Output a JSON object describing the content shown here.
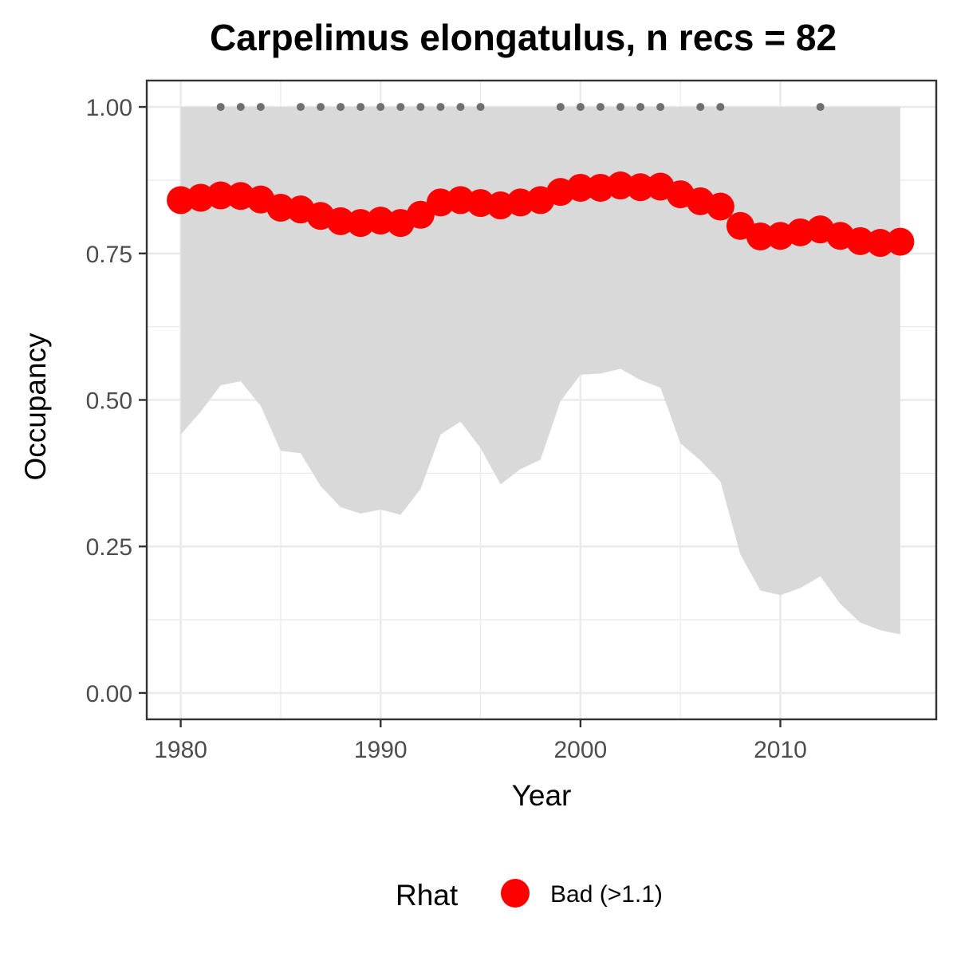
{
  "chart_data": {
    "type": "line",
    "title": "Carpelimus elongatulus, n recs = 82",
    "xlabel": "Year",
    "ylabel": "Occupancy",
    "xlim": [
      1978.3,
      2017.8
    ],
    "ylim": [
      -0.045,
      1.045
    ],
    "x_ticks": [
      1980,
      1990,
      2000,
      2010
    ],
    "y_ticks": [
      0,
      0.25,
      0.5,
      0.75,
      1
    ],
    "x_tick_labels": [
      "1980",
      "1990",
      "2000",
      "2010"
    ],
    "y_tick_labels": [
      "0.00",
      "0.25",
      "0.50",
      "0.75",
      "1.00"
    ],
    "grid": true,
    "legend": {
      "title": "Rhat",
      "position": "bottom",
      "entries": [
        {
          "label": "Bad (>1.1)",
          "color": "#ff0000"
        }
      ]
    },
    "colors": {
      "points": "#ff0000",
      "ribbon": "#d9d9d9",
      "record_dots": "#707070",
      "grid": "#ebebeb",
      "border": "#333333"
    },
    "years": [
      1980,
      1981,
      1982,
      1983,
      1984,
      1985,
      1986,
      1987,
      1988,
      1989,
      1990,
      1991,
      1992,
      1993,
      1994,
      1995,
      1996,
      1997,
      1998,
      1999,
      2000,
      2001,
      2002,
      2003,
      2004,
      2005,
      2006,
      2007,
      2008,
      2009,
      2010,
      2011,
      2012,
      2013,
      2014,
      2015,
      2016
    ],
    "series": [
      {
        "values": [
          0.841,
          0.845,
          0.849,
          0.848,
          0.842,
          0.828,
          0.825,
          0.814,
          0.805,
          0.802,
          0.806,
          0.802,
          0.816,
          0.837,
          0.841,
          0.836,
          0.832,
          0.837,
          0.841,
          0.855,
          0.862,
          0.862,
          0.866,
          0.863,
          0.864,
          0.851,
          0.839,
          0.83,
          0.797,
          0.779,
          0.78,
          0.786,
          0.791,
          0.78,
          0.771,
          0.768,
          0.77
        ]
      }
    ],
    "interval": {
      "lower": [
        0.441,
        0.48,
        0.525,
        0.532,
        0.49,
        0.413,
        0.409,
        0.353,
        0.317,
        0.306,
        0.313,
        0.304,
        0.348,
        0.441,
        0.463,
        0.418,
        0.356,
        0.382,
        0.398,
        0.498,
        0.543,
        0.545,
        0.553,
        0.534,
        0.521,
        0.426,
        0.397,
        0.361,
        0.236,
        0.175,
        0.167,
        0.179,
        0.199,
        0.152,
        0.12,
        0.107,
        0.1
      ],
      "upper": [
        1,
        1,
        1,
        1,
        1,
        1,
        1,
        1,
        1,
        1,
        1,
        1,
        1,
        1,
        1,
        1,
        1,
        1,
        1,
        1,
        1,
        1,
        1,
        1,
        1,
        1,
        1,
        1,
        1,
        1,
        1,
        1,
        1,
        1,
        1,
        1,
        1
      ]
    },
    "record_years": [
      1982,
      1983,
      1984,
      1986,
      1987,
      1988,
      1989,
      1990,
      1991,
      1992,
      1993,
      1994,
      1995,
      1999,
      2000,
      2001,
      2002,
      2003,
      2004,
      2006,
      2007,
      2012
    ],
    "record_value": 1
  }
}
